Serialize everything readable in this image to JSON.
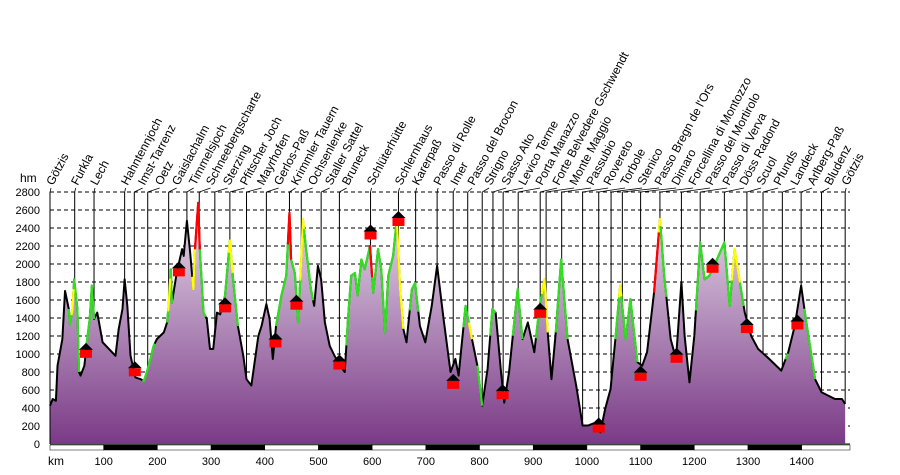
{
  "chart_data": {
    "type": "area",
    "title": "",
    "xlabel": "km",
    "ylabel": "hm",
    "xlim": [
      0,
      1490
    ],
    "ylim": [
      0,
      2800
    ],
    "x_ticks": [
      100,
      200,
      300,
      400,
      500,
      600,
      700,
      800,
      900,
      1000,
      1100,
      1200,
      1300,
      1400
    ],
    "y_ticks": [
      0,
      200,
      400,
      600,
      800,
      1000,
      1200,
      1400,
      1600,
      1800,
      2000,
      2200,
      2400,
      2600,
      2800
    ],
    "grid": true,
    "colors": {
      "fill_top": "#e8dcec",
      "fill_bottom": "#7a3a86",
      "line": "#000000",
      "easy": "#33dd22",
      "medium": "#ffff00",
      "hard": "#ff0000",
      "hut": "#ff0000"
    },
    "profile": [
      [
        0,
        425
      ],
      [
        5,
        500
      ],
      [
        11,
        480
      ],
      [
        14,
        870
      ],
      [
        23,
        1165
      ],
      [
        28,
        1700
      ],
      [
        35,
        1500
      ],
      [
        37,
        1330
      ],
      [
        42,
        1500
      ],
      [
        45,
        1830
      ],
      [
        51,
        1500
      ],
      [
        54,
        800
      ],
      [
        57,
        760
      ],
      [
        64,
        870
      ],
      [
        70,
        1200
      ],
      [
        74,
        1390
      ],
      [
        78,
        1760
      ],
      [
        82,
        1390
      ],
      [
        88,
        1460
      ],
      [
        98,
        1130
      ],
      [
        122,
        980
      ],
      [
        128,
        1280
      ],
      [
        135,
        1500
      ],
      [
        139,
        1830
      ],
      [
        144,
        1535
      ],
      [
        150,
        980
      ],
      [
        159,
        740
      ],
      [
        169,
        720
      ],
      [
        175,
        700
      ],
      [
        184,
        870
      ],
      [
        193,
        1090
      ],
      [
        199,
        1165
      ],
      [
        212,
        1240
      ],
      [
        218,
        1350
      ],
      [
        221,
        1535
      ],
      [
        225,
        1940
      ],
      [
        227,
        1570
      ],
      [
        236,
        1900
      ],
      [
        246,
        2165
      ],
      [
        249,
        2090
      ],
      [
        255,
        2480
      ],
      [
        261,
        2130
      ],
      [
        267,
        1720
      ],
      [
        270,
        2165
      ],
      [
        276,
        2680
      ],
      [
        279,
        2165
      ],
      [
        286,
        1460
      ],
      [
        292,
        1390
      ],
      [
        298,
        1055
      ],
      [
        304,
        1055
      ],
      [
        311,
        1460
      ],
      [
        317,
        1440
      ],
      [
        326,
        1650
      ],
      [
        335,
        2260
      ],
      [
        341,
        1830
      ],
      [
        350,
        1310
      ],
      [
        360,
        980
      ],
      [
        366,
        720
      ],
      [
        375,
        650
      ],
      [
        388,
        1200
      ],
      [
        394,
        1310
      ],
      [
        403,
        1555
      ],
      [
        409,
        1390
      ],
      [
        415,
        945
      ],
      [
        421,
        1310
      ],
      [
        431,
        1650
      ],
      [
        440,
        1870
      ],
      [
        446,
        2570
      ],
      [
        449,
        2050
      ],
      [
        456,
        1900
      ],
      [
        462,
        1350
      ],
      [
        468,
        2050
      ],
      [
        471,
        2500
      ],
      [
        477,
        2165
      ],
      [
        486,
        1720
      ],
      [
        492,
        1535
      ],
      [
        499,
        1980
      ],
      [
        505,
        1830
      ],
      [
        512,
        1350
      ],
      [
        521,
        1090
      ],
      [
        530,
        980
      ],
      [
        540,
        870
      ],
      [
        549,
        800
      ],
      [
        555,
        1390
      ],
      [
        561,
        1870
      ],
      [
        568,
        1900
      ],
      [
        573,
        1650
      ],
      [
        580,
        2050
      ],
      [
        586,
        1940
      ],
      [
        596,
        2200
      ],
      [
        602,
        1680
      ],
      [
        611,
        2165
      ],
      [
        617,
        1940
      ],
      [
        624,
        1240
      ],
      [
        630,
        1870
      ],
      [
        639,
        2090
      ],
      [
        646,
        2500
      ],
      [
        652,
        1720
      ],
      [
        658,
        1280
      ],
      [
        664,
        1130
      ],
      [
        674,
        1720
      ],
      [
        680,
        1790
      ],
      [
        689,
        1310
      ],
      [
        699,
        1130
      ],
      [
        711,
        1535
      ],
      [
        721,
        1980
      ],
      [
        733,
        1390
      ],
      [
        746,
        800
      ],
      [
        755,
        945
      ],
      [
        761,
        760
      ],
      [
        774,
        1535
      ],
      [
        786,
        1165
      ],
      [
        796,
        870
      ],
      [
        805,
        425
      ],
      [
        815,
        835
      ],
      [
        824,
        1500
      ],
      [
        830,
        1460
      ],
      [
        840,
        800
      ],
      [
        846,
        460
      ],
      [
        855,
        800
      ],
      [
        871,
        1720
      ],
      [
        880,
        1165
      ],
      [
        890,
        1350
      ],
      [
        902,
        1020
      ],
      [
        912,
        1535
      ],
      [
        921,
        1830
      ],
      [
        927,
        1240
      ],
      [
        934,
        720
      ],
      [
        942,
        1240
      ],
      [
        952,
        2050
      ],
      [
        964,
        1165
      ],
      [
        980,
        650
      ],
      [
        992,
        205
      ],
      [
        1002,
        205
      ],
      [
        1017,
        240
      ],
      [
        1025,
        130
      ],
      [
        1034,
        390
      ],
      [
        1044,
        610
      ],
      [
        1053,
        1165
      ],
      [
        1062,
        1760
      ],
      [
        1072,
        1165
      ],
      [
        1081,
        1610
      ],
      [
        1094,
        910
      ],
      [
        1103,
        870
      ],
      [
        1112,
        1020
      ],
      [
        1125,
        1680
      ],
      [
        1136,
        2500
      ],
      [
        1144,
        1870
      ],
      [
        1156,
        1165
      ],
      [
        1166,
        945
      ],
      [
        1176,
        1800
      ],
      [
        1182,
        1200
      ],
      [
        1191,
        685
      ],
      [
        1200,
        1200
      ],
      [
        1211,
        2240
      ],
      [
        1219,
        1830
      ],
      [
        1228,
        1870
      ],
      [
        1237,
        1980
      ],
      [
        1256,
        2240
      ],
      [
        1266,
        1535
      ],
      [
        1275,
        2165
      ],
      [
        1284,
        1830
      ],
      [
        1294,
        1460
      ],
      [
        1306,
        1200
      ],
      [
        1319,
        1055
      ],
      [
        1337,
        960
      ],
      [
        1362,
        815
      ],
      [
        1375,
        1020
      ],
      [
        1387,
        1310
      ],
      [
        1399,
        1760
      ],
      [
        1406,
        1460
      ],
      [
        1425,
        720
      ],
      [
        1437,
        575
      ],
      [
        1462,
        500
      ],
      [
        1475,
        500
      ],
      [
        1481,
        445
      ]
    ],
    "trail_segments": [
      {
        "from": 35,
        "to": 54,
        "level": "easy"
      },
      {
        "from": 40,
        "to": 44,
        "level": "medium"
      },
      {
        "from": 68,
        "to": 82,
        "level": "easy"
      },
      {
        "from": 172,
        "to": 195,
        "level": "easy"
      },
      {
        "from": 218,
        "to": 228,
        "level": "easy"
      },
      {
        "from": 220,
        "to": 224,
        "level": "medium"
      },
      {
        "from": 265,
        "to": 270,
        "level": "medium"
      },
      {
        "from": 270,
        "to": 279,
        "level": "hard"
      },
      {
        "from": 279,
        "to": 290,
        "level": "easy"
      },
      {
        "from": 323,
        "to": 350,
        "level": "easy"
      },
      {
        "from": 333,
        "to": 340,
        "level": "medium"
      },
      {
        "from": 421,
        "to": 443,
        "level": "easy"
      },
      {
        "from": 443,
        "to": 449,
        "level": "hard"
      },
      {
        "from": 449,
        "to": 466,
        "level": "easy"
      },
      {
        "from": 466,
        "to": 473,
        "level": "medium"
      },
      {
        "from": 473,
        "to": 490,
        "level": "easy"
      },
      {
        "from": 552,
        "to": 595,
        "level": "easy"
      },
      {
        "from": 595,
        "to": 600,
        "level": "hard"
      },
      {
        "from": 600,
        "to": 646,
        "level": "easy"
      },
      {
        "from": 646,
        "to": 658,
        "level": "medium"
      },
      {
        "from": 670,
        "to": 686,
        "level": "easy"
      },
      {
        "from": 770,
        "to": 780,
        "level": "easy"
      },
      {
        "from": 780,
        "to": 786,
        "level": "medium"
      },
      {
        "from": 796,
        "to": 805,
        "level": "easy"
      },
      {
        "from": 820,
        "to": 830,
        "level": "easy"
      },
      {
        "from": 862,
        "to": 880,
        "level": "easy"
      },
      {
        "from": 905,
        "to": 916,
        "level": "easy"
      },
      {
        "from": 916,
        "to": 927,
        "level": "medium"
      },
      {
        "from": 942,
        "to": 964,
        "level": "easy"
      },
      {
        "from": 1053,
        "to": 1094,
        "level": "easy"
      },
      {
        "from": 1060,
        "to": 1064,
        "level": "medium"
      },
      {
        "from": 1125,
        "to": 1134,
        "level": "hard"
      },
      {
        "from": 1134,
        "to": 1137,
        "level": "medium"
      },
      {
        "from": 1137,
        "to": 1148,
        "level": "easy"
      },
      {
        "from": 1203,
        "to": 1270,
        "level": "easy"
      },
      {
        "from": 1270,
        "to": 1285,
        "level": "medium"
      },
      {
        "from": 1285,
        "to": 1292,
        "level": "easy"
      },
      {
        "from": 1370,
        "to": 1374,
        "level": "easy"
      },
      {
        "from": 1405,
        "to": 1425,
        "level": "easy"
      }
    ],
    "huts": [
      [
        67,
        1035
      ],
      [
        158,
        830
      ],
      [
        240,
        1940
      ],
      [
        326,
        1540
      ],
      [
        420,
        1150
      ],
      [
        459,
        1570
      ],
      [
        539,
        905
      ],
      [
        597,
        2350
      ],
      [
        649,
        2500
      ],
      [
        751,
        690
      ],
      [
        843,
        575
      ],
      [
        913,
        1480
      ],
      [
        1022,
        205
      ],
      [
        1100,
        780
      ],
      [
        1167,
        980
      ],
      [
        1234,
        1980
      ],
      [
        1298,
        1310
      ],
      [
        1392,
        1350
      ]
    ],
    "waypoints": [
      {
        "name": "Götzis",
        "km": 0
      },
      {
        "name": "Furkla",
        "km": 46
      },
      {
        "name": "Lech",
        "km": 82
      },
      {
        "name": "Hahntennjoch",
        "km": 139
      },
      {
        "name": "Imst-Tarrenz",
        "km": 157
      },
      {
        "name": "Oetz",
        "km": 182
      },
      {
        "name": "Gaislachalm",
        "km": 221
      },
      {
        "name": "Timmelsjoch",
        "km": 255
      },
      {
        "name": "Schneebergscharte",
        "km": 278
      },
      {
        "name": "Sterzing",
        "km": 307
      },
      {
        "name": "Pfitscher Joch",
        "km": 335
      },
      {
        "name": "Mayrhofen",
        "km": 366
      },
      {
        "name": "Gerlos-Paß",
        "km": 403
      },
      {
        "name": "Krimmler Tauern",
        "km": 446
      },
      {
        "name": "Ochsenlenke",
        "km": 468
      },
      {
        "name": "Staller Sattel",
        "km": 505
      },
      {
        "name": "Bruneck",
        "km": 539
      },
      {
        "name": "Schlüterhütte",
        "km": 597
      },
      {
        "name": "Schlernhaus",
        "km": 649
      },
      {
        "name": "Karerpaß",
        "km": 681
      },
      {
        "name": "Passo di Rolle",
        "km": 721
      },
      {
        "name": "Imer",
        "km": 751
      },
      {
        "name": "Passo del Brocon",
        "km": 778
      },
      {
        "name": "Strigno",
        "km": 805
      },
      {
        "name": "Sasso Alto",
        "km": 825
      },
      {
        "name": "Levico Terme",
        "km": 844
      },
      {
        "name": "Porta Manazzo",
        "km": 872
      },
      {
        "name": "Forte Belvedere Gschwendt",
        "km": 913
      },
      {
        "name": "Monte Maggio",
        "km": 924
      },
      {
        "name": "Passubio",
        "km": 953
      },
      {
        "name": "Rovereto",
        "km": 992
      },
      {
        "name": "Torbole",
        "km": 1022
      },
      {
        "name": "Stenico",
        "km": 1045
      },
      {
        "name": "Passo Bregn de l'Ors",
        "km": 1066
      },
      {
        "name": "Dimaro",
        "km": 1100
      },
      {
        "name": "Forcellina di Montozzo",
        "km": 1136
      },
      {
        "name": "Passo del Mortirolo",
        "km": 1176
      },
      {
        "name": "Passo di Verva",
        "km": 1211
      },
      {
        "name": "Döss Radond",
        "km": 1256
      },
      {
        "name": "Scuol",
        "km": 1298
      },
      {
        "name": "Pfunds",
        "km": 1328
      },
      {
        "name": "Landeck",
        "km": 1364
      },
      {
        "name": "Arlberg-Paß",
        "km": 1399
      },
      {
        "name": "Bludenz",
        "km": 1437
      },
      {
        "name": "Götzis",
        "km": 1481
      }
    ]
  }
}
